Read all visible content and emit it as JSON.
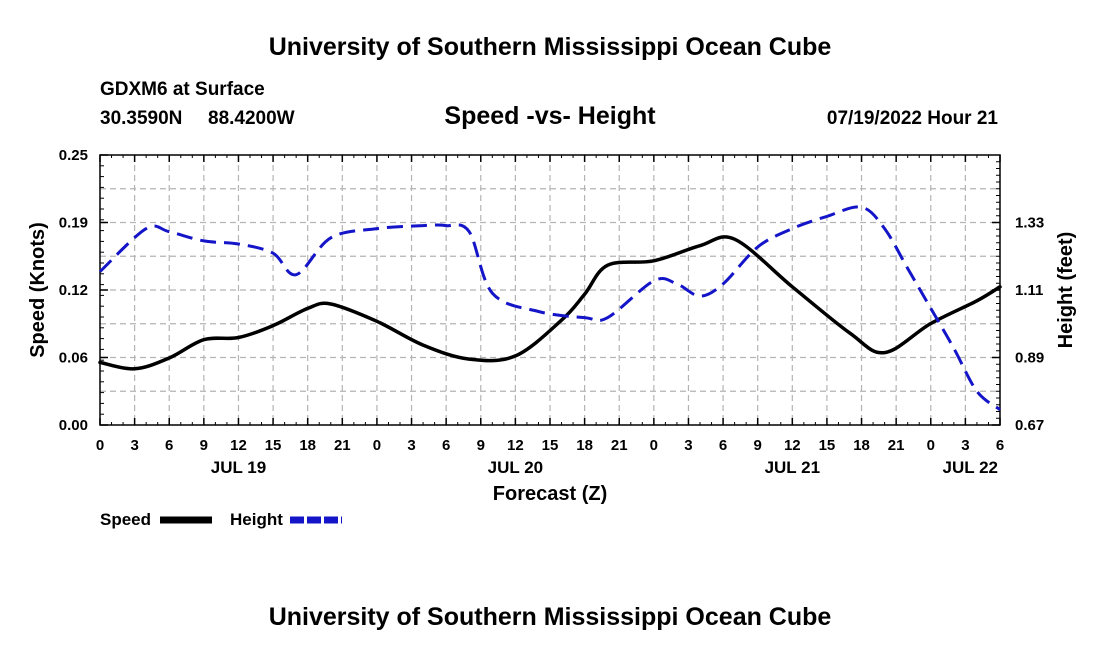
{
  "header": {
    "title": "University of Southern Mississippi Ocean Cube",
    "station": "GDXM6 at Surface",
    "latitude": "30.3590N",
    "longitude": "88.4200W",
    "plot_title": "Speed -vs- Height",
    "datetime": "07/19/2022 Hour 21"
  },
  "footer": {
    "title": "University of Southern Mississippi Ocean Cube"
  },
  "legend": {
    "speed_label": "Speed",
    "height_label": "Height"
  },
  "chart_data": {
    "type": "line",
    "title": "Speed -vs- Height",
    "xlabel": "Forecast (Z)",
    "ylabel": "Speed (Knots)",
    "y2label": "Height (feet)",
    "grid": true,
    "legend_position": "bottom-left",
    "x_ticks": [
      "0",
      "3",
      "6",
      "9",
      "12",
      "15",
      "18",
      "21",
      "0",
      "3",
      "6",
      "9",
      "12",
      "15",
      "18",
      "21",
      "0",
      "3",
      "6",
      "9",
      "12",
      "15",
      "18",
      "21",
      "0",
      "3",
      "6"
    ],
    "x_unit": "hours",
    "xlim": [
      0,
      78
    ],
    "date_labels": [
      {
        "label": "JUL 19",
        "hour": 12
      },
      {
        "label": "JUL 20",
        "hour": 36
      },
      {
        "label": "JUL 21",
        "hour": 60
      },
      {
        "label": "JUL 22",
        "hour": 78
      }
    ],
    "ylim": [
      0,
      0.25
    ],
    "y_ticks": [
      "0.00",
      "0.06",
      "0.12",
      "0.19",
      "0.25"
    ],
    "y2lim": [
      0.67,
      1.55
    ],
    "y2_ticks": [
      {
        "label": "0.67",
        "value": 0.67
      },
      {
        "label": "0.89",
        "value": 0.89
      },
      {
        "label": "1.11",
        "value": 1.11
      },
      {
        "label": "1.33",
        "value": 1.33
      }
    ],
    "colors": {
      "speed": "#000000",
      "height": "#1414c8",
      "grid": "#b4b4b4"
    },
    "series": [
      {
        "name": "Speed",
        "axis": "left",
        "x": [
          0,
          3,
          6,
          9,
          12,
          15,
          18,
          20,
          24,
          28,
          32,
          36,
          40,
          42,
          44,
          48,
          52,
          55,
          60,
          65,
          68,
          72,
          76,
          78
        ],
        "values": [
          0.058,
          0.052,
          0.062,
          0.079,
          0.081,
          0.092,
          0.108,
          0.112,
          0.096,
          0.074,
          0.061,
          0.064,
          0.097,
          0.121,
          0.148,
          0.152,
          0.166,
          0.172,
          0.128,
          0.085,
          0.067,
          0.094,
          0.115,
          0.128
        ],
        "style": "solid"
      },
      {
        "name": "Height",
        "axis": "right",
        "x": [
          0,
          4,
          6,
          9,
          12,
          15,
          17,
          20,
          24,
          28,
          30,
          32,
          34,
          38,
          42,
          44,
          48,
          50,
          52,
          54,
          57,
          60,
          63,
          66,
          68,
          70,
          72,
          74,
          76,
          78
        ],
        "values": [
          1.17,
          1.31,
          1.3,
          1.27,
          1.26,
          1.23,
          1.16,
          1.28,
          1.31,
          1.32,
          1.32,
          1.3,
          1.1,
          1.04,
          1.02,
          1.02,
          1.14,
          1.13,
          1.09,
          1.13,
          1.25,
          1.31,
          1.35,
          1.38,
          1.31,
          1.18,
          1.05,
          0.92,
          0.78,
          0.72
        ],
        "style": "dashed"
      }
    ]
  }
}
